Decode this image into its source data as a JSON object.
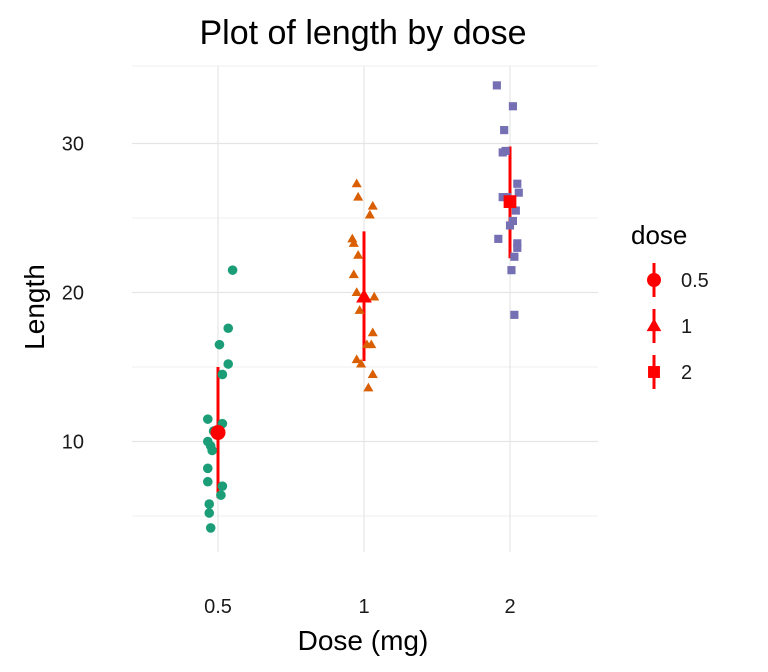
{
  "chart_data": {
    "type": "scatter",
    "title": "Plot of length  by dose",
    "xlabel": "Dose (mg)",
    "ylabel": "Length",
    "categories": [
      "0.5",
      "1",
      "2"
    ],
    "y_ticks": [
      10,
      20,
      30
    ],
    "ylim": [
      2.5,
      35.5
    ],
    "grid": true,
    "legend": {
      "title": "dose",
      "position": "right",
      "entries": [
        "0.5",
        "1",
        "2"
      ]
    },
    "colors": {
      "0.5": "#1b9e77",
      "1": "#d95f02",
      "2": "#7570b3",
      "summary": "#ff0000",
      "grid_major": "#e5e5e5",
      "grid_minor": "#f2f2f2"
    },
    "shapes": {
      "0.5": "circle",
      "1": "triangle",
      "2": "square"
    },
    "series": [
      {
        "category": "0.5",
        "points": [
          {
            "dx": 0.1,
            "y": 21.5
          },
          {
            "dx": 0.07,
            "y": 17.6
          },
          {
            "dx": 0.01,
            "y": 16.5
          },
          {
            "dx": 0.07,
            "y": 15.2
          },
          {
            "dx": 0.03,
            "y": 14.5
          },
          {
            "dx": -0.07,
            "y": 11.5
          },
          {
            "dx": 0.03,
            "y": 11.2
          },
          {
            "dx": -0.03,
            "y": 10.7
          },
          {
            "dx": -0.07,
            "y": 10.0
          },
          {
            "dx": -0.05,
            "y": 9.7
          },
          {
            "dx": -0.04,
            "y": 9.4
          },
          {
            "dx": -0.07,
            "y": 8.2
          },
          {
            "dx": -0.07,
            "y": 7.3
          },
          {
            "dx": 0.03,
            "y": 7.0
          },
          {
            "dx": 0.02,
            "y": 6.4
          },
          {
            "dx": -0.06,
            "y": 5.8
          },
          {
            "dx": -0.06,
            "y": 5.2
          },
          {
            "dx": -0.05,
            "y": 4.2
          }
        ],
        "mean": 10.6,
        "range": [
          6.2,
          15.0
        ]
      },
      {
        "category": "1",
        "points": [
          {
            "dx": -0.05,
            "y": 27.3
          },
          {
            "dx": -0.04,
            "y": 26.4
          },
          {
            "dx": 0.06,
            "y": 25.8
          },
          {
            "dx": 0.04,
            "y": 25.2
          },
          {
            "dx": -0.08,
            "y": 23.6
          },
          {
            "dx": -0.07,
            "y": 23.3
          },
          {
            "dx": -0.04,
            "y": 22.5
          },
          {
            "dx": -0.07,
            "y": 21.2
          },
          {
            "dx": -0.05,
            "y": 20.0
          },
          {
            "dx": 0.07,
            "y": 19.7
          },
          {
            "dx": -0.03,
            "y": 18.8
          },
          {
            "dx": 0.06,
            "y": 17.3
          },
          {
            "dx": 0.05,
            "y": 16.5
          },
          {
            "dx": 0.02,
            "y": 16.5
          },
          {
            "dx": -0.05,
            "y": 15.5
          },
          {
            "dx": -0.02,
            "y": 15.2
          },
          {
            "dx": 0.06,
            "y": 14.5
          },
          {
            "dx": 0.03,
            "y": 13.6
          }
        ],
        "mean": 19.7,
        "range": [
          15.4,
          24.1
        ]
      },
      {
        "category": "2",
        "points": [
          {
            "dx": -0.09,
            "y": 33.9
          },
          {
            "dx": 0.02,
            "y": 32.5
          },
          {
            "dx": -0.04,
            "y": 30.9
          },
          {
            "dx": -0.03,
            "y": 29.5
          },
          {
            "dx": -0.05,
            "y": 29.4
          },
          {
            "dx": 0.05,
            "y": 27.3
          },
          {
            "dx": 0.06,
            "y": 26.7
          },
          {
            "dx": -0.05,
            "y": 26.4
          },
          {
            "dx": -0.02,
            "y": 26.4
          },
          {
            "dx": 0.04,
            "y": 25.5
          },
          {
            "dx": 0.02,
            "y": 24.8
          },
          {
            "dx": 0.0,
            "y": 24.5
          },
          {
            "dx": -0.08,
            "y": 23.6
          },
          {
            "dx": 0.05,
            "y": 23.3
          },
          {
            "dx": 0.05,
            "y": 23.0
          },
          {
            "dx": 0.03,
            "y": 22.4
          },
          {
            "dx": 0.01,
            "y": 21.5
          },
          {
            "dx": 0.03,
            "y": 18.5
          }
        ],
        "mean": 26.1,
        "range": [
          22.3,
          29.8
        ]
      }
    ]
  }
}
